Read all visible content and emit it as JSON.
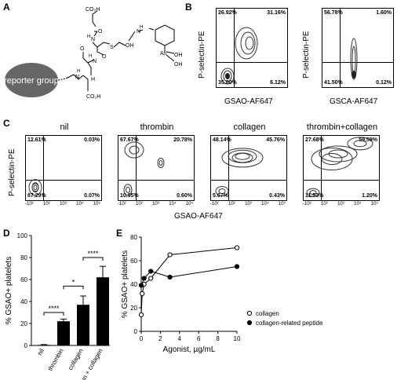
{
  "panels": {
    "A": "A",
    "B": "B",
    "C": "C",
    "D": "D",
    "E": "E"
  },
  "structure": {
    "atoms": {
      "o1": "O",
      "o2": "O",
      "o3": "O",
      "oh1": "OH",
      "n1": "N",
      "n1h": "H",
      "n2": "N",
      "n2h": "H",
      "n3": "N",
      "n3h": "H",
      "n4": "N",
      "n4h": "H",
      "s": "S",
      "as": "As",
      "oh2": "OH",
      "oh3": "OH",
      "h": "H",
      "co2h_top": "CO₂H",
      "co2h_bot": "CO₂H"
    },
    "reporter": "reporter group"
  },
  "panelB": {
    "plot1": {
      "ylabel": "P-selectin-PE",
      "xlabel": "GSAO-AF647",
      "q": [
        "26.92%",
        "31.16%",
        "35.80%",
        "6.12%"
      ]
    },
    "plot2": {
      "ylabel": "P-selectin-PE",
      "xlabel": "GSCA-AF647",
      "q": [
        "56.78%",
        "1.60%",
        "41.50%",
        "0.12%"
      ]
    }
  },
  "panelC": {
    "ylabel": "P-selectin-PE",
    "xlabel": "GSAO-AF647",
    "plots": [
      {
        "title": "nil",
        "q": [
          "12.61%",
          "0.03%",
          "87.29%",
          "0.07%"
        ]
      },
      {
        "title": "thrombin",
        "q": [
          "67.67%",
          "20.78%",
          "10.95%",
          "0.60%"
        ]
      },
      {
        "title": "collagen",
        "q": [
          "48.14%",
          "45.76%",
          "5.67%",
          "0.43%"
        ]
      },
      {
        "title": "thrombin+collagen",
        "q": [
          "27.68%",
          "59.59%",
          "11.53%",
          "1.20%"
        ]
      }
    ]
  },
  "ticks": {
    "log": [
      "-10²",
      "10²",
      "10³",
      "10⁴",
      "10⁵"
    ]
  },
  "chart_data": [
    {
      "type": "bar",
      "categories": [
        "nil",
        "thrombin",
        "collagen",
        "thrombin + collagen"
      ],
      "values": [
        0.5,
        22,
        37,
        62
      ],
      "errors": [
        0.3,
        2,
        8,
        10
      ],
      "ylabel": "% GSAO+ platelets",
      "ylim": [
        0,
        100
      ],
      "yticks": [
        "0",
        "20",
        "40",
        "60",
        "80",
        "100"
      ],
      "significance": [
        "****",
        "*",
        "****"
      ]
    },
    {
      "type": "line",
      "xlabel": "Agonist, µg/mL",
      "ylabel": "% GSAO+ platelets",
      "xlim": [
        0,
        10
      ],
      "ylim": [
        0,
        80
      ],
      "xticks": [
        "0",
        "2",
        "4",
        "6",
        "8",
        "10"
      ],
      "yticks": [
        "0",
        "20",
        "40",
        "60",
        "80"
      ],
      "series": [
        {
          "name": "collagen",
          "marker": "open",
          "x": [
            0,
            0.1,
            0.3,
            1,
            3,
            10
          ],
          "y": [
            14,
            32,
            40,
            45,
            65,
            71
          ]
        },
        {
          "name": "collagen-related peptide",
          "marker": "filled",
          "x": [
            0,
            0.3,
            1,
            3,
            10
          ],
          "y": [
            39,
            45,
            51,
            46,
            55
          ]
        }
      ]
    }
  ]
}
